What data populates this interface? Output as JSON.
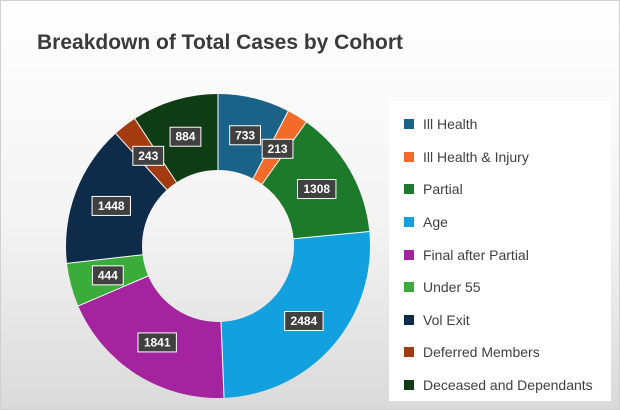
{
  "chart_data": {
    "type": "pie",
    "title": "Breakdown of Total Cases by Cohort",
    "legend_position": "right",
    "slices": [
      {
        "label": "Ill Health",
        "value": 733,
        "color": "#1b6289"
      },
      {
        "label": "Ill Health & Injury",
        "value": 213,
        "color": "#f26b2a"
      },
      {
        "label": "Partial",
        "value": 1308,
        "color": "#1d7a2a"
      },
      {
        "label": "Age",
        "value": 2484,
        "color": "#12a1de"
      },
      {
        "label": "Final after Partial",
        "value": 1841,
        "color": "#a3249e"
      },
      {
        "label": "Under 55",
        "value": 444,
        "color": "#3aac3a"
      },
      {
        "label": "Vol Exit",
        "value": 1448,
        "color": "#0e2c4a"
      },
      {
        "label": "Deferred Members",
        "value": 243,
        "color": "#a33b10"
      },
      {
        "label": "Deceased and Dependants",
        "value": 884,
        "color": "#0f3c14"
      }
    ]
  }
}
